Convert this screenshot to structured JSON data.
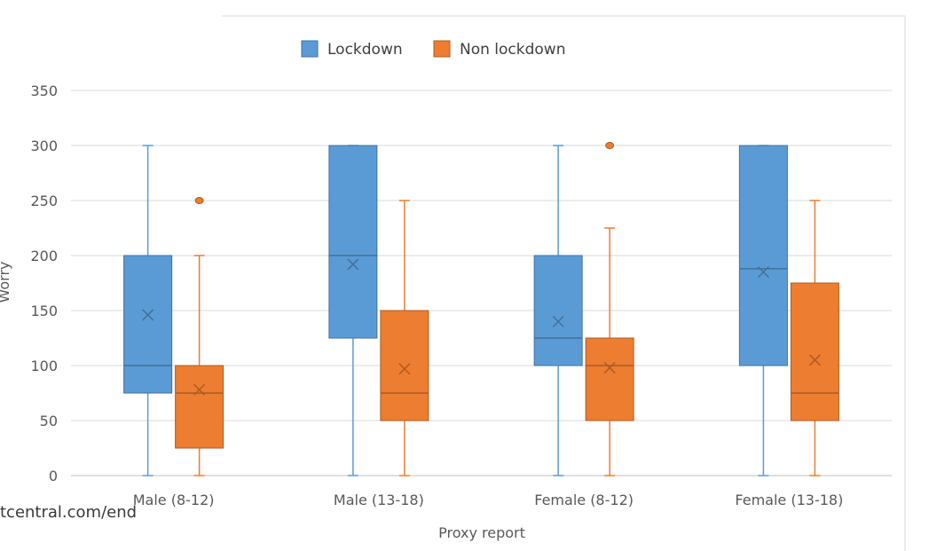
{
  "chart_data": {
    "type": "boxplot",
    "title": "",
    "xlabel": "Proxy report",
    "ylabel": "Worry",
    "ylim": [
      0,
      350
    ],
    "yticks": [
      0,
      50,
      100,
      150,
      200,
      250,
      300,
      350
    ],
    "grid": true,
    "legend_position": "top-center",
    "categories": [
      "Male (8-12)",
      "Male (13-18)",
      "Female (8-12)",
      "Female (13-18)"
    ],
    "series": [
      {
        "name": "Lockdown",
        "color": "#5B9BD5",
        "stroke": "#41719C",
        "boxes": [
          {
            "min": 0,
            "q1": 75,
            "median": 100,
            "q3": 200,
            "max": 300,
            "mean": 146,
            "outliers": []
          },
          {
            "min": 0,
            "q1": 125,
            "median": 200,
            "q3": 300,
            "max": 300,
            "mean": 192,
            "outliers": []
          },
          {
            "min": 0,
            "q1": 100,
            "median": 125,
            "q3": 200,
            "max": 300,
            "mean": 140,
            "outliers": []
          },
          {
            "min": 0,
            "q1": 100,
            "median": 188,
            "q3": 300,
            "max": 300,
            "mean": 185,
            "outliers": []
          }
        ]
      },
      {
        "name": "Non lockdown",
        "color": "#ED7D31",
        "stroke": "#AE5A21",
        "boxes": [
          {
            "min": 0,
            "q1": 25,
            "median": 75,
            "q3": 100,
            "max": 200,
            "mean": 78,
            "outliers": [
              250
            ]
          },
          {
            "min": 0,
            "q1": 50,
            "median": 75,
            "q3": 150,
            "max": 250,
            "mean": 97,
            "outliers": []
          },
          {
            "min": 0,
            "q1": 50,
            "median": 100,
            "q3": 125,
            "max": 225,
            "mean": 98,
            "outliers": [
              300
            ]
          },
          {
            "min": 0,
            "q1": 50,
            "median": 75,
            "q3": 175,
            "max": 250,
            "mean": 105,
            "outliers": []
          }
        ]
      }
    ]
  },
  "watermark": "tcentral.com/end"
}
